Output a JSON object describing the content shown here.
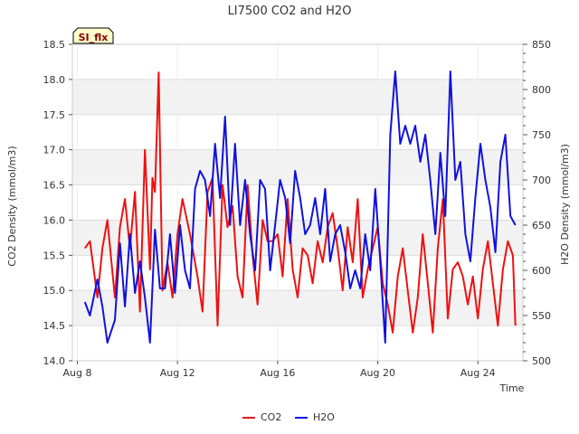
{
  "chart_data": {
    "type": "line",
    "title": "LI7500 CO2 and H2O",
    "badge": "SI_flx",
    "xlabel": "Time",
    "ylabel_left": "CO2 Density (mmol/m3)",
    "ylabel_right": "H2O Density (mmol/m3)",
    "xlim": [
      7.8,
      25.8
    ],
    "ylim_left": [
      14.0,
      18.5
    ],
    "ylim_right": [
      500,
      850
    ],
    "x_ticks": [
      8,
      12,
      16,
      20,
      24
    ],
    "x_tick_labels": [
      "Aug 8",
      "Aug 12",
      "Aug 16",
      "Aug 20",
      "Aug 24"
    ],
    "y_ticks_left": [
      14.0,
      14.5,
      15.0,
      15.5,
      16.0,
      16.5,
      17.0,
      17.5,
      18.0,
      18.5
    ],
    "y_tick_labels_left": [
      "14.0",
      "14.5",
      "15.0",
      "15.5",
      "16.0",
      "16.5",
      "17.0",
      "17.5",
      "18.0",
      "18.5"
    ],
    "y_ticks_right": [
      500,
      550,
      600,
      650,
      700,
      750,
      800,
      850
    ],
    "y_tick_labels_right": [
      "500",
      "550",
      "600",
      "650",
      "700",
      "750",
      "800",
      "850"
    ],
    "grid": true,
    "legend_position": "bottom-center",
    "series": [
      {
        "name": "CO2",
        "color": "#ee1111",
        "axis": "left",
        "x": [
          8.3,
          8.5,
          8.8,
          9.0,
          9.2,
          9.5,
          9.7,
          9.9,
          10.1,
          10.3,
          10.5,
          10.7,
          10.9,
          11.0,
          11.1,
          11.25,
          11.4,
          11.6,
          11.8,
          12.0,
          12.2,
          12.5,
          12.8,
          13.0,
          13.2,
          13.4,
          13.6,
          13.8,
          14.0,
          14.2,
          14.4,
          14.6,
          14.8,
          15.0,
          15.2,
          15.4,
          15.6,
          15.8,
          16.0,
          16.2,
          16.4,
          16.6,
          16.8,
          17.0,
          17.2,
          17.4,
          17.6,
          17.8,
          18.0,
          18.2,
          18.4,
          18.6,
          18.8,
          19.0,
          19.2,
          19.4,
          19.6,
          19.8,
          20.0,
          20.2,
          20.4,
          20.6,
          20.8,
          21.0,
          21.2,
          21.4,
          21.6,
          21.8,
          22.0,
          22.2,
          22.4,
          22.6,
          22.8,
          23.0,
          23.2,
          23.4,
          23.6,
          23.8,
          24.0,
          24.2,
          24.4,
          24.6,
          24.8,
          25.0,
          25.2,
          25.4,
          25.5
        ],
        "values": [
          15.6,
          15.7,
          14.9,
          15.6,
          16.0,
          14.9,
          15.9,
          16.3,
          15.6,
          16.4,
          14.7,
          17.0,
          15.3,
          16.6,
          16.4,
          18.1,
          15.0,
          15.4,
          14.9,
          15.8,
          16.3,
          15.8,
          15.2,
          14.7,
          16.4,
          16.6,
          14.5,
          16.5,
          15.9,
          16.2,
          15.2,
          14.9,
          16.5,
          15.5,
          14.8,
          16.0,
          15.7,
          15.7,
          15.8,
          15.2,
          16.3,
          15.3,
          14.9,
          15.6,
          15.5,
          15.1,
          15.7,
          15.4,
          15.9,
          16.1,
          15.6,
          15.0,
          15.9,
          15.4,
          16.3,
          14.9,
          15.3,
          15.6,
          15.9,
          15.1,
          14.8,
          14.4,
          15.2,
          15.6,
          15.0,
          14.4,
          14.9,
          15.8,
          15.1,
          14.4,
          15.6,
          16.3,
          14.6,
          15.3,
          15.4,
          15.2,
          14.8,
          15.2,
          14.6,
          15.3,
          15.7,
          15.1,
          14.5,
          15.3,
          15.7,
          15.5,
          14.5
        ],
        "values_note": ""
      },
      {
        "name": "H2O",
        "color": "#1111dd",
        "axis": "right",
        "x": [
          8.3,
          8.5,
          8.8,
          9.0,
          9.2,
          9.5,
          9.7,
          9.9,
          10.1,
          10.3,
          10.5,
          10.7,
          10.9,
          11.1,
          11.3,
          11.5,
          11.7,
          11.9,
          12.1,
          12.3,
          12.5,
          12.7,
          12.9,
          13.1,
          13.3,
          13.5,
          13.7,
          13.9,
          14.1,
          14.3,
          14.5,
          14.7,
          14.9,
          15.1,
          15.3,
          15.5,
          15.7,
          15.9,
          16.1,
          16.3,
          16.5,
          16.7,
          16.9,
          17.1,
          17.3,
          17.5,
          17.7,
          17.9,
          18.1,
          18.3,
          18.5,
          18.7,
          18.9,
          19.1,
          19.3,
          19.5,
          19.7,
          19.9,
          20.1,
          20.3,
          20.5,
          20.7,
          20.9,
          21.1,
          21.3,
          21.5,
          21.7,
          21.9,
          22.1,
          22.3,
          22.5,
          22.7,
          22.9,
          23.1,
          23.3,
          23.5,
          23.7,
          23.9,
          24.1,
          24.3,
          24.5,
          24.7,
          24.9,
          25.1,
          25.3,
          25.5
        ],
        "values": [
          565,
          550,
          590,
          560,
          520,
          545,
          630,
          560,
          640,
          575,
          610,
          570,
          520,
          645,
          580,
          580,
          640,
          575,
          650,
          600,
          580,
          690,
          710,
          700,
          660,
          740,
          680,
          770,
          650,
          740,
          650,
          700,
          640,
          600,
          700,
          690,
          600,
          650,
          700,
          680,
          630,
          710,
          680,
          640,
          650,
          680,
          640,
          690,
          610,
          640,
          650,
          620,
          580,
          600,
          580,
          640,
          600,
          690,
          610,
          520,
          750,
          820,
          740,
          760,
          740,
          760,
          720,
          750,
          700,
          640,
          730,
          660,
          820,
          700,
          720,
          640,
          610,
          680,
          740,
          700,
          670,
          620,
          720,
          750,
          660,
          650
        ],
        "values_note": ""
      }
    ]
  }
}
